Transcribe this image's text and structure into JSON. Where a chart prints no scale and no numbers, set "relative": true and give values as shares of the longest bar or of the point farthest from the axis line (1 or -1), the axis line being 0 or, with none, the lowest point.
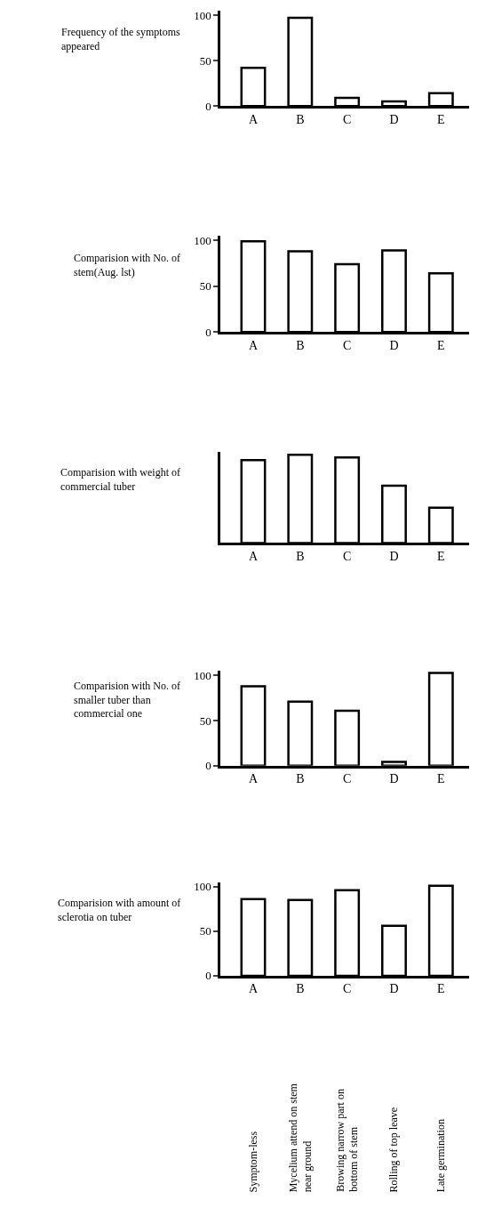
{
  "chart_data": [
    {
      "type": "bar",
      "title": "Frequency of the symptoms appeared",
      "categories": [
        "A",
        "B",
        "C",
        "D",
        "E"
      ],
      "values": [
        42,
        97,
        9,
        5,
        14
      ],
      "color": "#ffffff",
      "ylim": [
        0,
        105
      ],
      "yticks": [
        0,
        50,
        100
      ]
    },
    {
      "type": "bar",
      "title": "Comparision with No. of stem(Aug. lst)",
      "categories": [
        "A",
        "B",
        "C",
        "D",
        "E"
      ],
      "values": [
        99,
        88,
        74,
        89,
        64
      ],
      "color": "#ffffff",
      "ylim": [
        0,
        105
      ],
      "yticks": [
        0,
        50,
        100
      ]
    },
    {
      "type": "bar",
      "title": "Comparision with weight of commercial tuber",
      "categories": [
        "A",
        "B",
        "C",
        "D",
        "E"
      ],
      "values": [
        0.94,
        1,
        0.97,
        0.65,
        0.4
      ],
      "color": "#ffffff",
      "relative": true
    },
    {
      "type": "bar",
      "title": "Comparision with No. of smaller tuber than commercial one",
      "categories": [
        "A",
        "B",
        "C",
        "D",
        "E"
      ],
      "values": [
        88,
        71,
        61,
        4,
        103
      ],
      "color": "#ffffff",
      "ylim": [
        0,
        105
      ],
      "yticks": [
        0,
        50,
        100
      ]
    },
    {
      "type": "bar",
      "title": "Comparision with amount of sclerotia on tuber",
      "categories": [
        "A",
        "B",
        "C",
        "D",
        "E"
      ],
      "values": [
        86,
        85,
        96,
        56,
        101
      ],
      "color": "#ffffff",
      "ylim": [
        0,
        105
      ],
      "yticks": [
        0,
        50,
        100
      ],
      "annotations": [
        "Symptom-less",
        "Mycelium attend on stem\nnear ground",
        "Browing narrow part on\nbottom of stem",
        "Rolling of top leave",
        "Late germination"
      ]
    }
  ]
}
